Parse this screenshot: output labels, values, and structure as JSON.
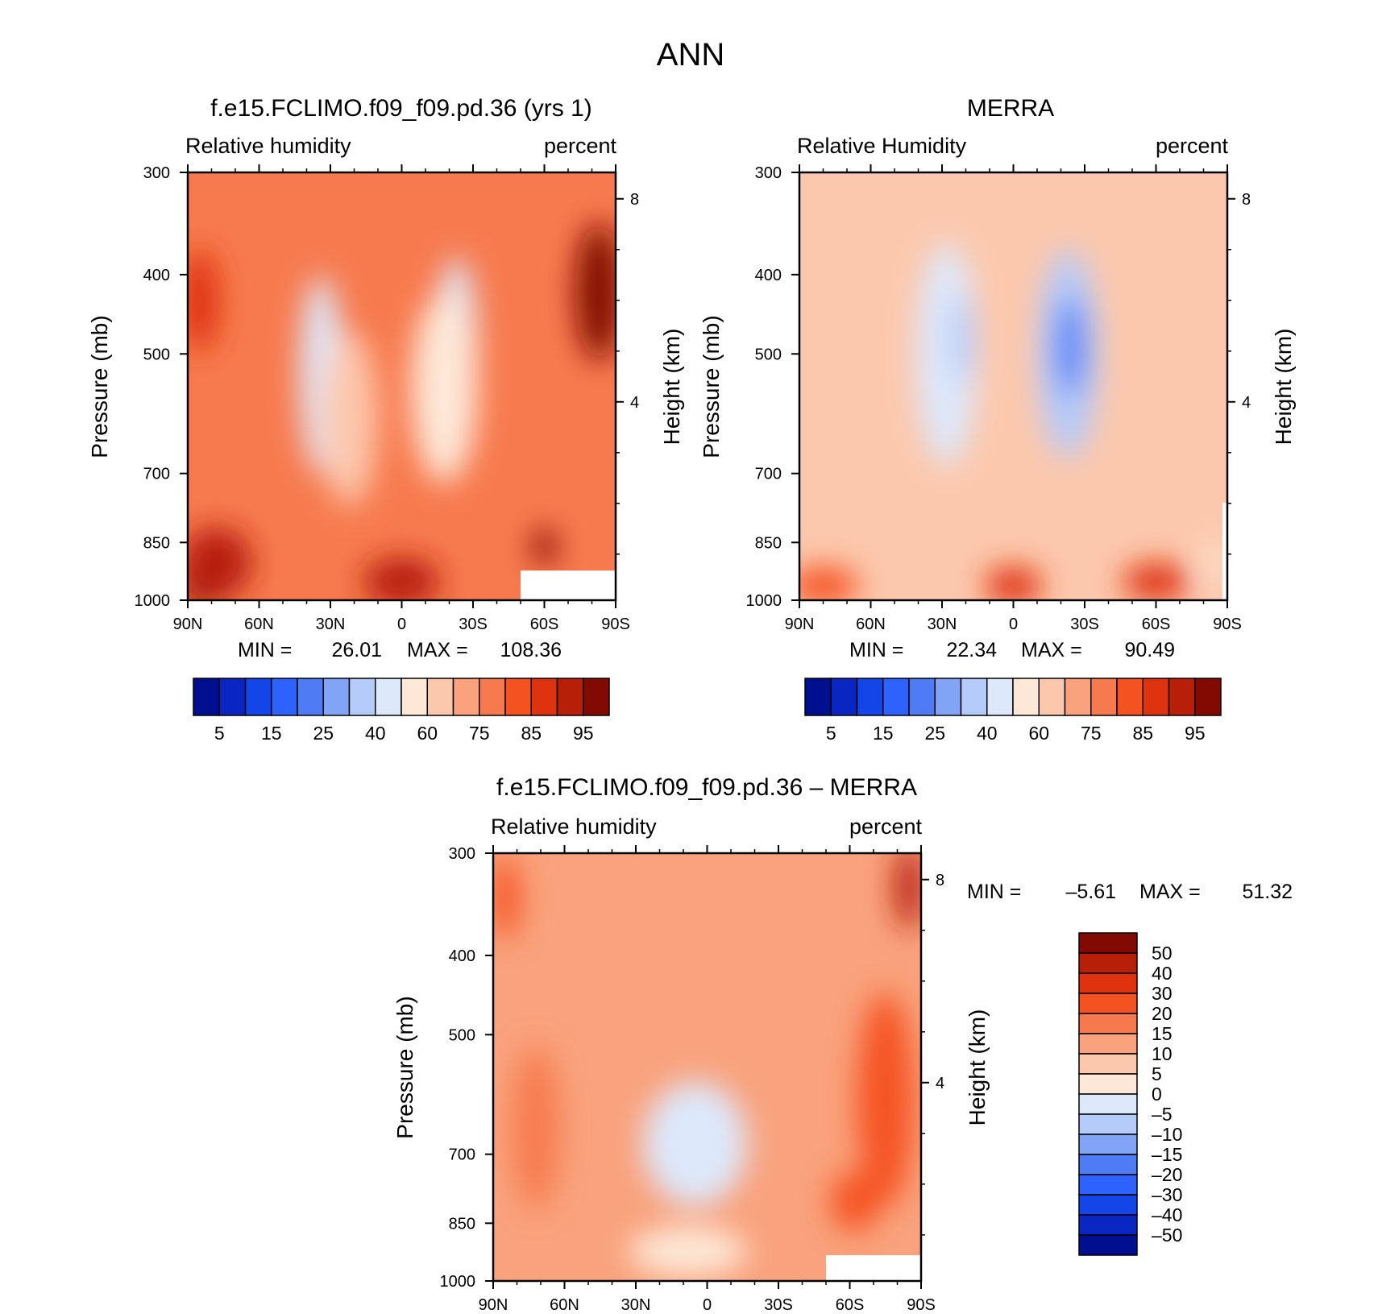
{
  "figure_title": "ANN",
  "chart_data": [
    {
      "type": "heatmap",
      "title": "f.e15.FCLIMO.f09_f09.pd.36 (yrs 1)",
      "left_label": "Relative humidity",
      "right_label": "percent",
      "ylabel": "Pressure (mb)",
      "y2label": "Height (km)",
      "x_ticks": [
        "90N",
        "60N",
        "30N",
        "0",
        "30S",
        "60S",
        "90S"
      ],
      "y_ticks": [
        "300",
        "400",
        "500",
        "700",
        "850",
        "1000"
      ],
      "y2_ticks": [
        "8",
        "4"
      ],
      "min_max": {
        "min_label": "MIN =",
        "min": "26.01",
        "max_label": "MAX =",
        "max": "108.36"
      },
      "colorbar_labels": [
        "5",
        "15",
        "25",
        "40",
        "60",
        "75",
        "85",
        "95"
      ],
      "blobs": [
        {
          "x": 34,
          "p": 530,
          "rx": 9,
          "ry": 260,
          "value": 48
        },
        {
          "x": 22,
          "p": 600,
          "rx": 12,
          "ry": 260,
          "value": 62
        },
        {
          "x": -23,
          "p": 500,
          "rx": 9,
          "ry": 240,
          "value": 40
        },
        {
          "x": -18,
          "p": 550,
          "rx": 14,
          "ry": 260,
          "value": 55
        },
        {
          "x": -83,
          "p": 420,
          "rx": 10,
          "ry": 140,
          "value": 108
        },
        {
          "x": -60,
          "p": 860,
          "rx": 5,
          "ry": 40,
          "value": 96
        },
        {
          "x": 0,
          "p": 950,
          "rx": 16,
          "ry": 80,
          "value": 90
        },
        {
          "x": 83,
          "p": 960,
          "rx": 10,
          "ry": 60,
          "value": 100
        },
        {
          "x": 78,
          "p": 900,
          "rx": 15,
          "ry": 130,
          "value": 92
        },
        {
          "x": 85,
          "p": 430,
          "rx": 8,
          "ry": 100,
          "value": 85
        }
      ],
      "background": 76,
      "missing_region": {
        "x_from": -50,
        "x_to": -90,
        "p_from": 920,
        "p_to": 1000
      }
    },
    {
      "type": "heatmap",
      "title": "MERRA",
      "left_label": "Relative Humidity",
      "right_label": "percent",
      "ylabel": "Pressure (mb)",
      "y2label": "Height (km)",
      "x_ticks": [
        "90N",
        "60N",
        "30N",
        "0",
        "30S",
        "60S",
        "90S"
      ],
      "y_ticks": [
        "300",
        "400",
        "500",
        "700",
        "850",
        "1000"
      ],
      "y2_ticks": [
        "8",
        "4"
      ],
      "min_max": {
        "min_label": "MIN =",
        "min": "22.34",
        "max_label": "MAX =",
        "max": "90.49"
      },
      "colorbar_labels": [
        "5",
        "15",
        "25",
        "40",
        "60",
        "75",
        "85",
        "95"
      ],
      "blobs": [
        {
          "x": 28,
          "p": 500,
          "rx": 13,
          "ry": 280,
          "value": 42
        },
        {
          "x": 22,
          "p": 480,
          "rx": 5,
          "ry": 90,
          "value": 30
        },
        {
          "x": -23,
          "p": 500,
          "rx": 13,
          "ry": 260,
          "value": 38
        },
        {
          "x": -24,
          "p": 490,
          "rx": 6,
          "ry": 110,
          "value": 24
        },
        {
          "x": 0,
          "p": 960,
          "rx": 12,
          "ry": 50,
          "value": 88
        },
        {
          "x": -60,
          "p": 950,
          "rx": 14,
          "ry": 50,
          "value": 86
        },
        {
          "x": 80,
          "p": 960,
          "rx": 15,
          "ry": 50,
          "value": 82
        },
        {
          "x": -85,
          "p": 900,
          "rx": 4,
          "ry": 70,
          "value": 58
        }
      ],
      "background": 66,
      "missing_region": {
        "x_from": -88,
        "x_to": -90,
        "p_from": 760,
        "p_to": 1000
      }
    },
    {
      "type": "heatmap",
      "title": "f.e15.FCLIMO.f09_f09.pd.36 – MERRA",
      "left_label": "Relative humidity",
      "right_label": "percent",
      "ylabel": "Pressure (mb)",
      "y2label": "Height (km)",
      "x_ticks": [
        "90N",
        "60N",
        "30N",
        "0",
        "30S",
        "60S",
        "90S"
      ],
      "y_ticks": [
        "300",
        "400",
        "500",
        "700",
        "850",
        "1000"
      ],
      "y2_ticks": [
        "8",
        "4"
      ],
      "min_max": {
        "min_label": "MIN =",
        "min": "–5.61",
        "max_label": "MAX =",
        "max": "51.32"
      },
      "colorbar_labels": [
        "50",
        "40",
        "30",
        "20",
        "15",
        "10",
        "5",
        "0",
        "–5",
        "–10",
        "–15",
        "–20",
        "–30",
        "–40",
        "–50"
      ],
      "blobs": [
        {
          "x": 5,
          "p": 680,
          "rx": 22,
          "ry": 200,
          "value": -3
        },
        {
          "x": 8,
          "p": 920,
          "rx": 25,
          "ry": 80,
          "value": 3
        },
        {
          "x": -75,
          "p": 600,
          "rx": 12,
          "ry": 320,
          "value": 28
        },
        {
          "x": -62,
          "p": 800,
          "rx": 10,
          "ry": 90,
          "value": 24
        },
        {
          "x": -85,
          "p": 330,
          "rx": 6,
          "ry": 60,
          "value": 45
        },
        {
          "x": 72,
          "p": 650,
          "rx": 10,
          "ry": 260,
          "value": 17
        },
        {
          "x": 85,
          "p": 340,
          "rx": 6,
          "ry": 60,
          "value": 22
        }
      ],
      "background": 10,
      "missing_region": {
        "x_from": -50,
        "x_to": -90,
        "p_from": 930,
        "p_to": 1000
      }
    }
  ],
  "colors": {
    "abs_palette": [
      "#000f8f",
      "#0a26c2",
      "#1445e8",
      "#2e62ff",
      "#4f7cf5",
      "#82a4f7",
      "#b5cbfa",
      "#dde8fb",
      "#fde8d8",
      "#fcc8ad",
      "#f9a27d",
      "#f77a4e",
      "#f55222",
      "#df3310",
      "#b71f08",
      "#820a02"
    ],
    "diff_palette": [
      "#000f8f",
      "#0a26c2",
      "#1445e8",
      "#2e62ff",
      "#4f7cf5",
      "#82a4f7",
      "#b5cbfa",
      "#dde8fb",
      "#fde8d8",
      "#fcc8ad",
      "#f9a27d",
      "#f77a4e",
      "#f55222",
      "#df3310",
      "#b71f08",
      "#820a02"
    ]
  }
}
